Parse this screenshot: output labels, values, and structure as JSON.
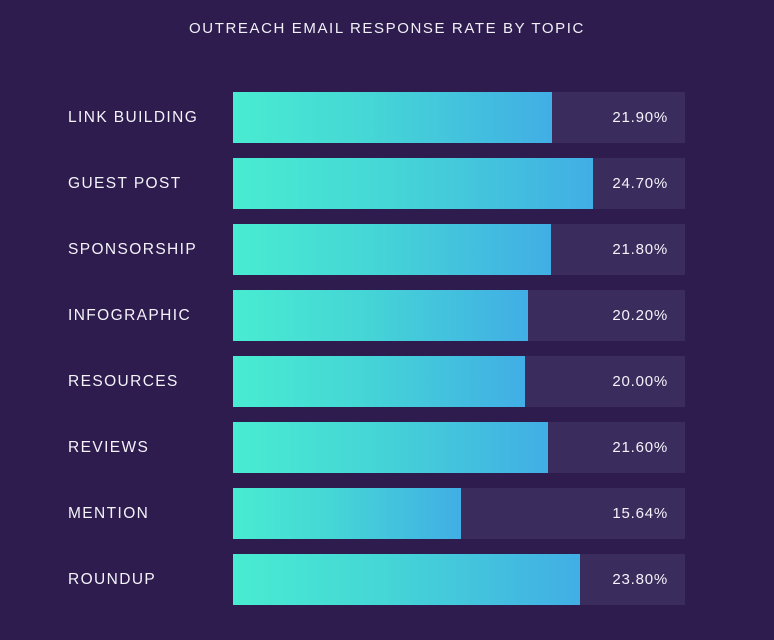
{
  "chart_data": {
    "type": "bar",
    "orientation": "horizontal",
    "title": "OUTREACH EMAIL RESPONSE RATE BY TOPIC",
    "xlabel": "",
    "ylabel": "",
    "xlim": [
      0,
      31
    ],
    "grid": false,
    "categories": [
      "LINK BUILDING",
      "GUEST POST",
      "SPONSORSHIP",
      "INFOGRAPHIC",
      "RESOURCES",
      "REVIEWS",
      "MENTION",
      "ROUNDUP"
    ],
    "values": [
      21.9,
      24.7,
      21.8,
      20.2,
      20.0,
      21.6,
      15.64,
      23.8
    ],
    "value_labels": [
      "21.90%",
      "24.70%",
      "21.80%",
      "20.20%",
      "20.00%",
      "21.60%",
      "15.64%",
      "23.80%"
    ],
    "colors": {
      "background": "#2d1c4d",
      "track": "#3a2c5c",
      "bar_start": "#48ecd1",
      "bar_end": "#41aee5",
      "text": "#f4f3fb"
    }
  }
}
